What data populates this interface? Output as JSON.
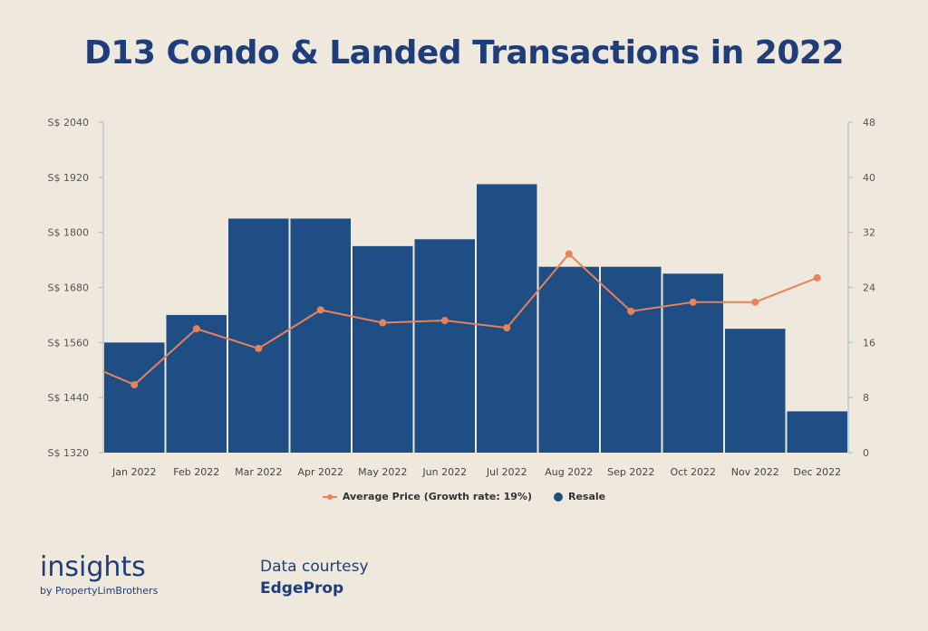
{
  "chart_data": {
    "type": "bar",
    "title": "D13 Condo & Landed Transactions in 2022",
    "categories": [
      "Jan 2022",
      "Feb 2022",
      "Mar 2022",
      "Apr 2022",
      "May 2022",
      "Jun 2022",
      "Jul 2022",
      "Aug 2022",
      "Sep 2022",
      "Oct 2022",
      "Nov 2022",
      "Dec 2022"
    ],
    "series": [
      {
        "name": "Resale",
        "type": "bar",
        "axis": "right",
        "color": "#1f4e85",
        "values": [
          16,
          20,
          34,
          34,
          30,
          31,
          39,
          27,
          27,
          26,
          18,
          6
        ]
      },
      {
        "name": "Average Price (Growth rate: 19%)",
        "type": "line",
        "axis": "left",
        "color": "#e8825a",
        "values": [
          1468,
          1590,
          1547,
          1631,
          1603,
          1608,
          1592,
          1753,
          1628,
          1648,
          1648,
          1701
        ]
      }
    ],
    "y_left": {
      "ticks": [
        "S$ 1320",
        "S$ 1440",
        "S$ 1560",
        "S$ 1680",
        "S$ 1800",
        "S$ 1920",
        "S$ 2040"
      ],
      "min": 1320,
      "max": 2040
    },
    "y_right": {
      "ticks": [
        "0",
        "8",
        "16",
        "24",
        "32",
        "40",
        "48"
      ],
      "min": 0,
      "max": 48
    },
    "legend": "bottom"
  },
  "branding": {
    "logo_word": "insights",
    "logo_sub": "by PropertyLimBrothers",
    "credit_line": "Data courtesy",
    "credit_name": "EdgeProp"
  }
}
